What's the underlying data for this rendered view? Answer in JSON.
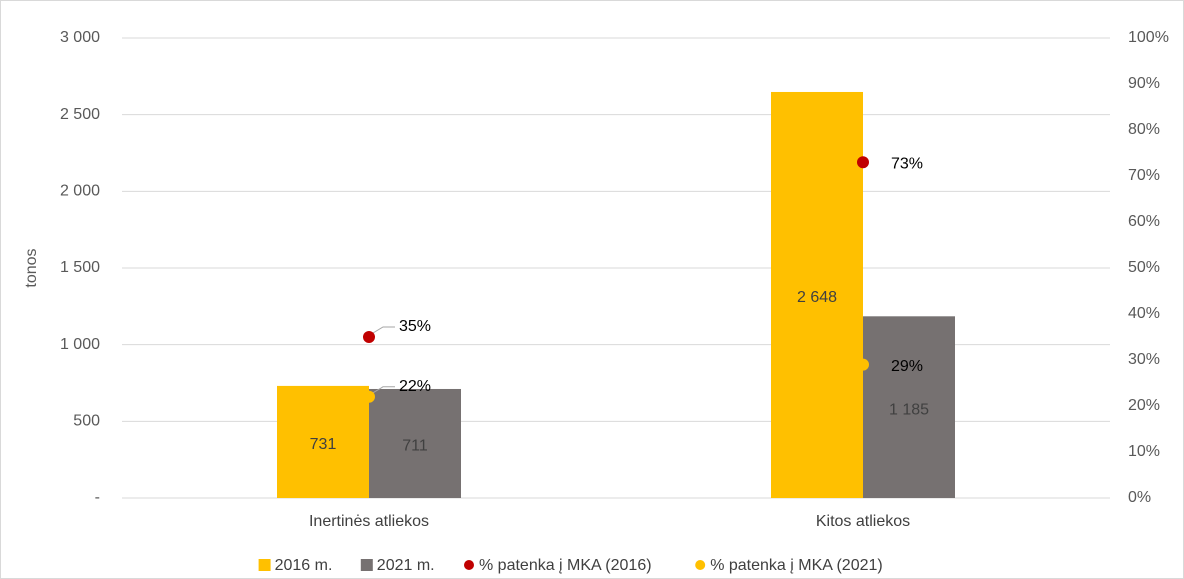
{
  "chart_data": {
    "type": "bar",
    "y_label": "tonos",
    "categories": [
      "Inertinės atliekos",
      "Kitos atliekos"
    ],
    "series": [
      {
        "name": "2016 m.",
        "color": "#FFC000",
        "values": [
          731,
          2648
        ],
        "value_labels": [
          "731",
          "2 648"
        ]
      },
      {
        "name": "2021 m.",
        "color": "#767171",
        "values": [
          711,
          1185
        ],
        "value_labels": [
          "711",
          "1 185"
        ]
      },
      {
        "name": "% patenka į MKA (2016)",
        "type": "scatter",
        "axis": "y2",
        "color": "#C00000",
        "values": [
          35,
          73
        ],
        "value_labels": [
          "35%",
          "73%"
        ]
      },
      {
        "name": "% patenka į MKA (2021)",
        "type": "scatter",
        "axis": "y2",
        "color": "#FFC000",
        "values": [
          22,
          29
        ],
        "value_labels": [
          "22%",
          "29%"
        ]
      }
    ],
    "ylim": [
      0,
      3000
    ],
    "yticks": [
      {
        "value": 0,
        "label": "-"
      },
      500,
      {
        "value": 1000,
        "label": "1 000"
      },
      {
        "value": 1500,
        "label": "1 500"
      },
      {
        "value": 2000,
        "label": "2 000"
      },
      {
        "value": 2500,
        "label": "2 500"
      },
      {
        "value": 3000,
        "label": "3 000"
      }
    ],
    "y2lim": [
      0,
      100
    ],
    "y2ticks": [
      {
        "value": 0,
        "label": "0%"
      },
      {
        "value": 10,
        "label": "10%"
      },
      {
        "value": 20,
        "label": "20%"
      },
      {
        "value": 30,
        "label": "30%"
      },
      {
        "value": 40,
        "label": "40%"
      },
      {
        "value": 50,
        "label": "50%"
      },
      {
        "value": 60,
        "label": "60%"
      },
      {
        "value": 70,
        "label": "70%"
      },
      {
        "value": 80,
        "label": "80%"
      },
      {
        "value": 90,
        "label": "90%"
      },
      {
        "value": 100,
        "label": "100%"
      }
    ],
    "grid": true,
    "legend": "bottom"
  }
}
